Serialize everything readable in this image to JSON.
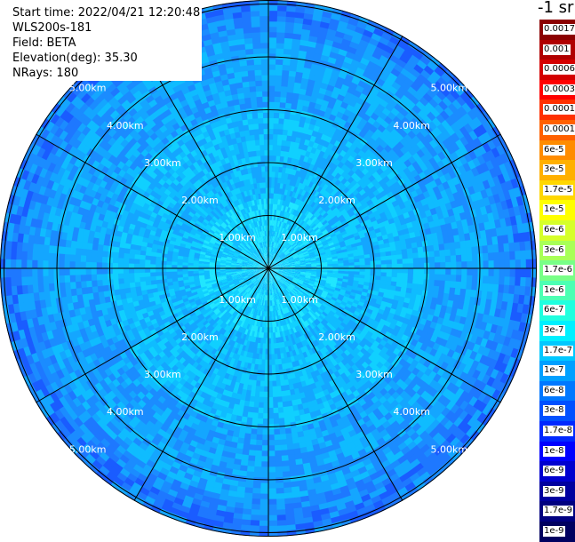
{
  "info": {
    "start_time": "Start time: 2022/04/21 12:20:48",
    "instrument": "WLS200s-181",
    "field": "Field: BETA",
    "elevation": "Elevation(deg): 35.30",
    "nrays": "NRays: 180"
  },
  "unit_label": "-1 sr",
  "range_labels": [
    "1.00km",
    "2.00km",
    "3.00km",
    "4.00km",
    "5.00km"
  ],
  "colorbar": {
    "labels": [
      "0.0017",
      "0.001",
      "0.0006",
      "0.0003",
      "0.00017",
      "0.0001",
      "6e-5",
      "3e-5",
      "1.7e-5",
      "1e-5",
      "6e-6",
      "3e-6",
      "1.7e-6",
      "1e-6",
      "6e-7",
      "3e-7",
      "1.7e-7",
      "1e-7",
      "6e-8",
      "3e-8",
      "1.7e-8",
      "1e-8",
      "6e-9",
      "3e-9",
      "1.7e-9",
      "1e-9"
    ],
    "colors": [
      "#8b0000",
      "#b00000",
      "#d40000",
      "#ff0000",
      "#ff3000",
      "#ff6000",
      "#ff8c00",
      "#ffb000",
      "#ffd700",
      "#ffff00",
      "#d6ff29",
      "#a8ff57",
      "#78ff87",
      "#4cffb3",
      "#20ffdf",
      "#00f0ff",
      "#00c8ff",
      "#00a0ff",
      "#0078ff",
      "#0050ff",
      "#0028ff",
      "#0000ff",
      "#0000cf",
      "#00009f",
      "#000080",
      "#000060"
    ]
  }
}
